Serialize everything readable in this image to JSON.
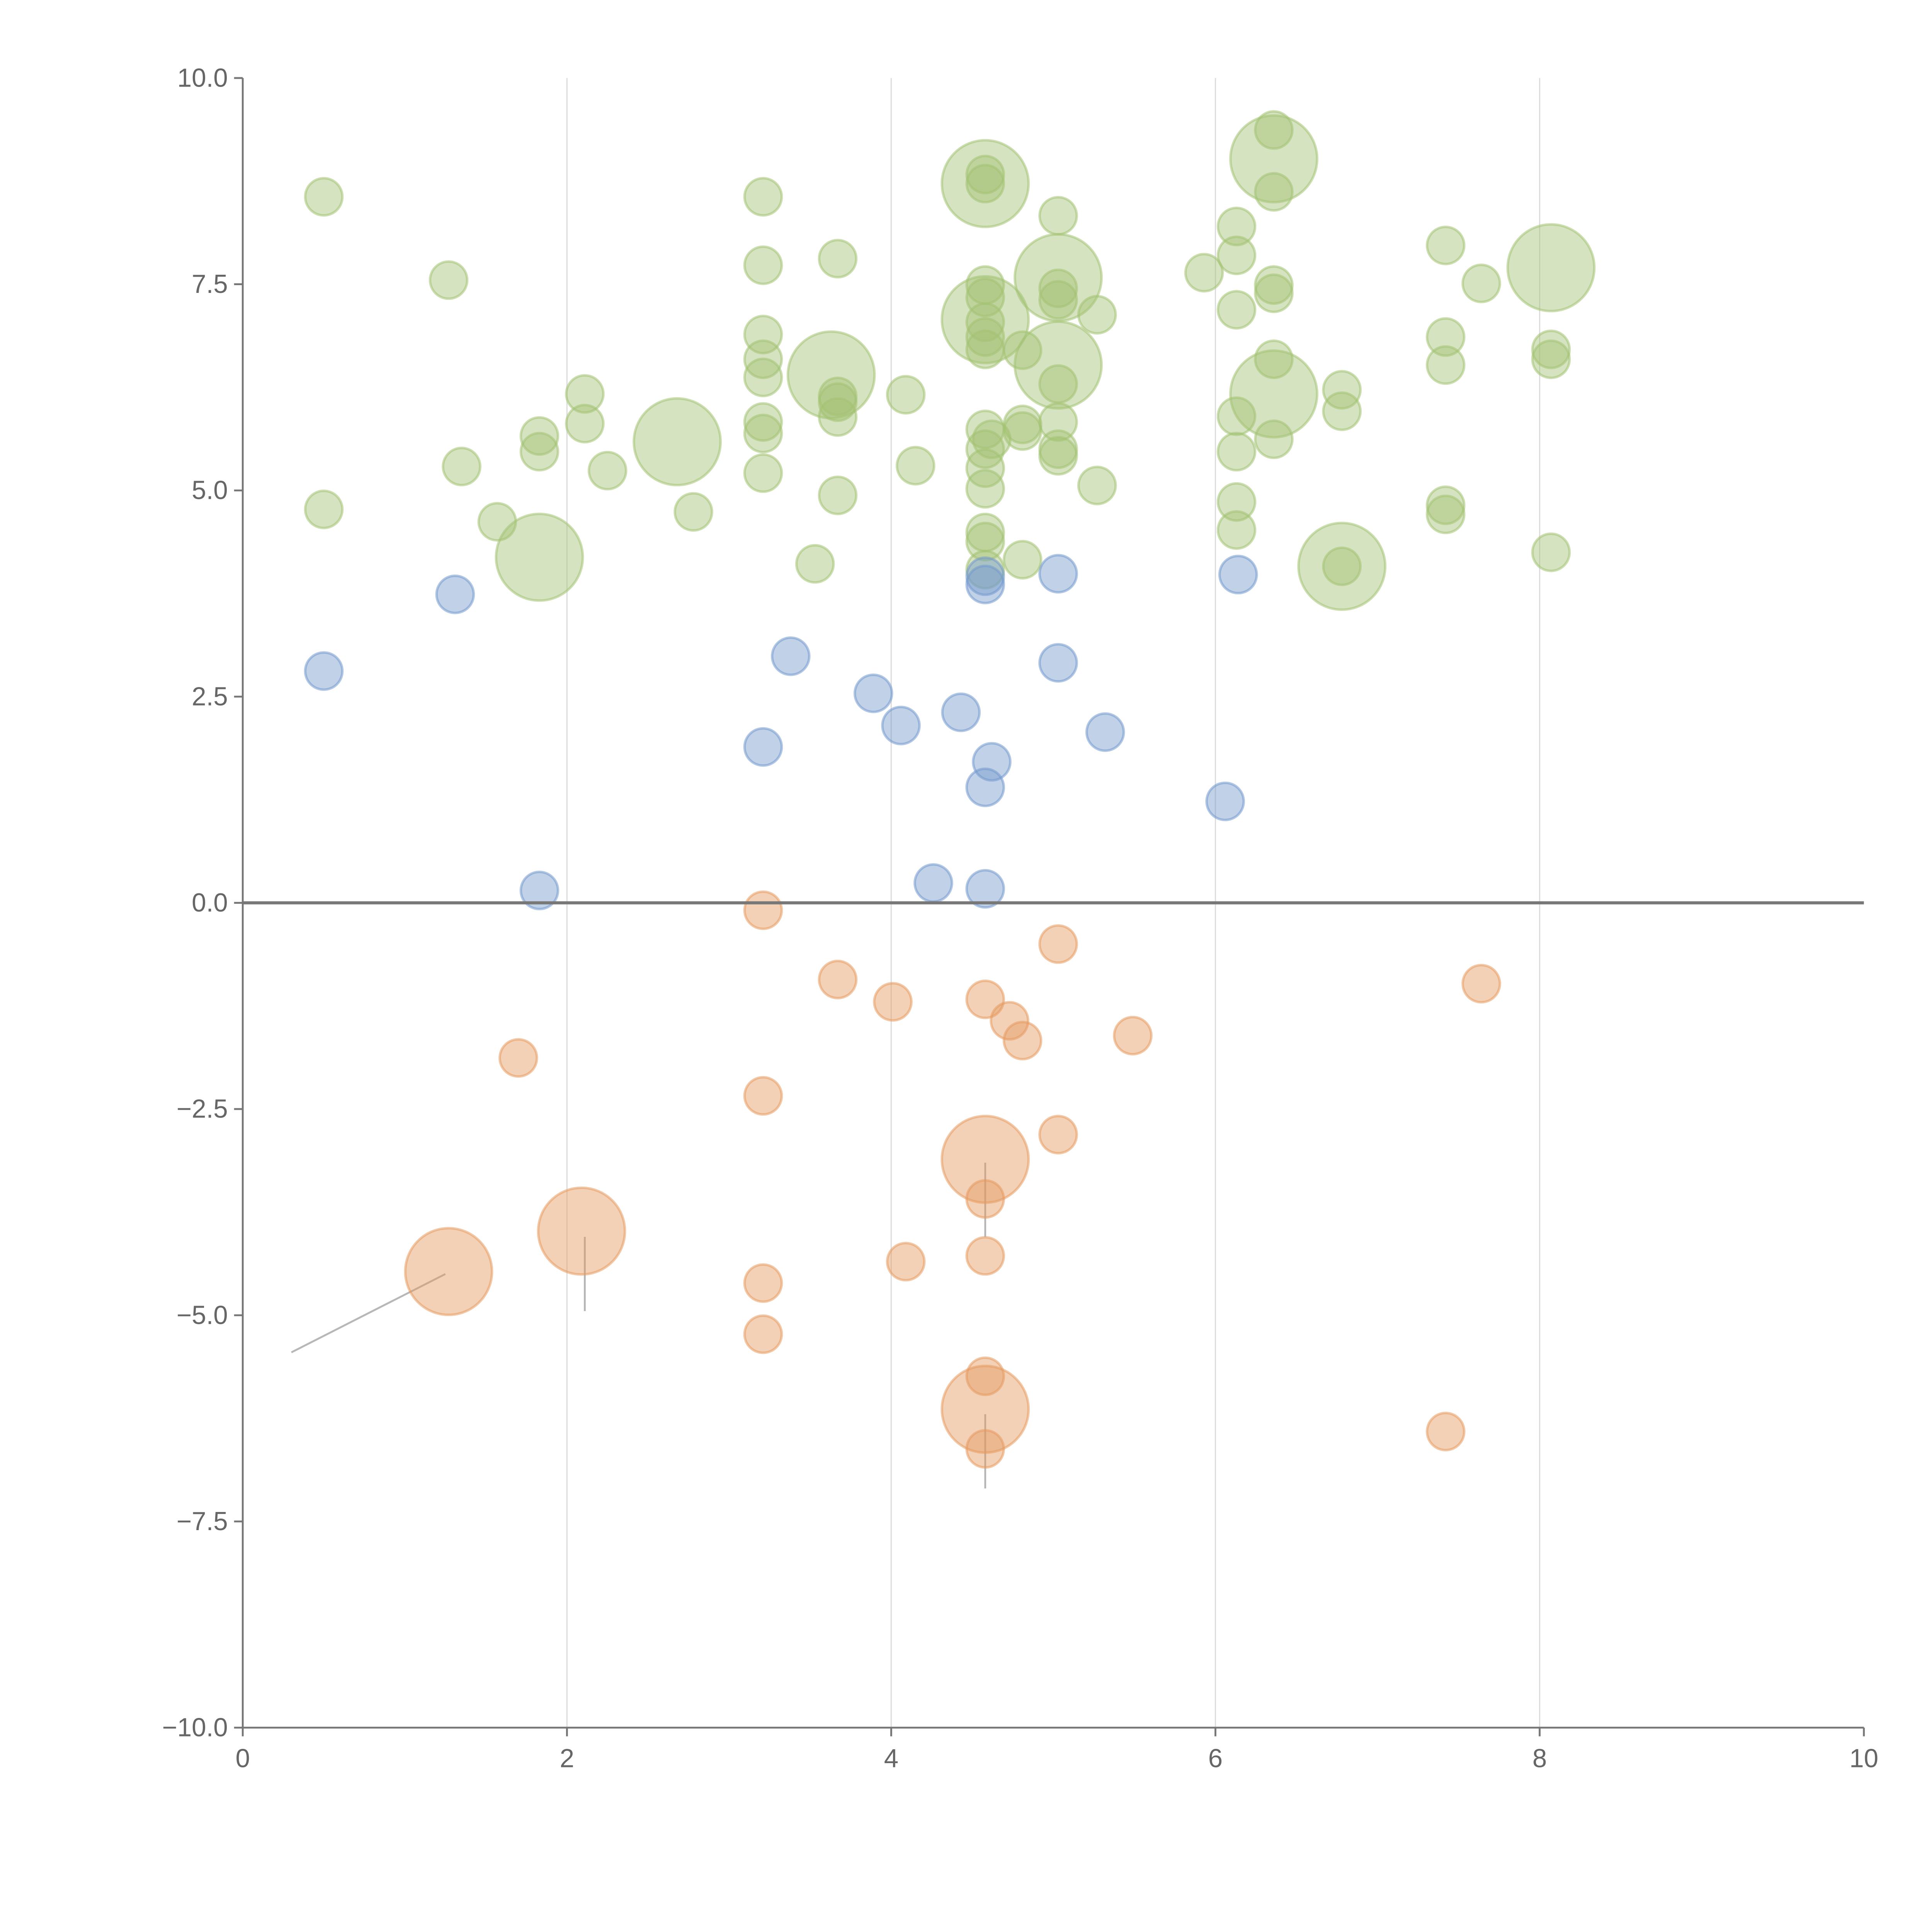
{
  "chart_data": {
    "type": "scatter",
    "title": "",
    "xlabel": "",
    "ylabel": "",
    "xlim": [
      0,
      10
    ],
    "ylim": [
      -10,
      10
    ],
    "grid": "vertical",
    "x_ticks": [
      "0",
      "2",
      "4",
      "6",
      "8",
      "10"
    ],
    "x_tick_values": [
      0,
      2,
      4,
      6,
      8,
      10
    ],
    "y_ticks": [
      "10.0",
      "7.5",
      "5.0",
      "2.5",
      "0.0",
      "−2.5",
      "−5.0",
      "−7.5",
      "−10.0"
    ],
    "y_tick_values": [
      10,
      7.5,
      5,
      2.5,
      0,
      -2.5,
      -5,
      -7.5,
      -10
    ],
    "colors": {
      "green": "#a3c273",
      "blue": "#7399cc",
      "orange": "#e59a60"
    },
    "series": [
      {
        "name": "green",
        "points": [
          [
            0.5,
            8.56,
            1
          ],
          [
            1.27,
            7.55,
            1
          ],
          [
            0.5,
            4.77,
            1
          ],
          [
            1.35,
            5.29,
            1
          ],
          [
            1.57,
            4.62,
            1
          ],
          [
            1.83,
            5.66,
            1
          ],
          [
            1.83,
            5.47,
            1
          ],
          [
            2.11,
            6.17,
            1
          ],
          [
            2.11,
            5.81,
            1
          ],
          [
            2.25,
            5.24,
            1
          ],
          [
            2.78,
            4.74,
            1
          ],
          [
            3.21,
            8.56,
            1
          ],
          [
            3.21,
            7.73,
            1
          ],
          [
            3.21,
            6.89,
            1
          ],
          [
            3.21,
            6.59,
            1
          ],
          [
            3.21,
            6.37,
            1
          ],
          [
            3.21,
            5.83,
            1
          ],
          [
            3.21,
            5.69,
            1
          ],
          [
            3.21,
            5.21,
            1
          ],
          [
            3.53,
            4.11,
            1
          ],
          [
            3.67,
            7.81,
            1
          ],
          [
            3.67,
            6.14,
            1
          ],
          [
            3.67,
            6.07,
            1
          ],
          [
            3.67,
            5.89,
            1
          ],
          [
            3.67,
            4.94,
            1
          ],
          [
            4.09,
            6.16,
            1
          ],
          [
            4.15,
            5.3,
            1
          ],
          [
            4.58,
            8.83,
            1
          ],
          [
            4.58,
            8.72,
            1
          ],
          [
            4.58,
            7.49,
            1
          ],
          [
            4.58,
            7.34,
            1
          ],
          [
            4.58,
            7.04,
            1
          ],
          [
            4.58,
            6.86,
            1
          ],
          [
            4.58,
            6.71,
            1
          ],
          [
            4.58,
            5.74,
            1
          ],
          [
            4.58,
            5.5,
            1
          ],
          [
            4.58,
            5.27,
            1
          ],
          [
            4.58,
            5.02,
            1
          ],
          [
            4.58,
            4.49,
            1
          ],
          [
            4.58,
            4.38,
            1
          ],
          [
            4.58,
            4.04,
            1
          ],
          [
            4.62,
            5.62,
            1
          ],
          [
            4.81,
            6.7,
            1
          ],
          [
            4.81,
            5.8,
            1
          ],
          [
            4.81,
            5.72,
            1
          ],
          [
            4.81,
            4.16,
            1
          ],
          [
            5.03,
            8.33,
            1
          ],
          [
            5.03,
            7.45,
            1
          ],
          [
            5.03,
            7.31,
            1
          ],
          [
            5.03,
            6.29,
            1
          ],
          [
            5.03,
            5.83,
            1
          ],
          [
            5.03,
            5.5,
            1
          ],
          [
            5.03,
            5.42,
            1
          ],
          [
            5.27,
            7.13,
            1
          ],
          [
            5.27,
            5.06,
            1
          ],
          [
            5.93,
            7.64,
            1
          ],
          [
            6.13,
            8.2,
            1
          ],
          [
            6.13,
            7.85,
            1
          ],
          [
            6.13,
            7.19,
            1
          ],
          [
            6.13,
            5.9,
            1
          ],
          [
            6.13,
            5.47,
            1
          ],
          [
            6.13,
            4.86,
            1
          ],
          [
            6.13,
            4.52,
            1
          ],
          [
            6.36,
            9.37,
            1
          ],
          [
            6.36,
            8.62,
            1
          ],
          [
            6.36,
            7.49,
            1
          ],
          [
            6.36,
            7.39,
            1
          ],
          [
            6.36,
            6.59,
            1
          ],
          [
            6.36,
            5.62,
            1
          ],
          [
            6.78,
            6.22,
            1
          ],
          [
            6.78,
            5.96,
            1
          ],
          [
            6.78,
            4.08,
            1
          ],
          [
            7.42,
            7.97,
            1
          ],
          [
            7.42,
            6.86,
            1
          ],
          [
            7.42,
            6.52,
            1
          ],
          [
            7.42,
            4.82,
            1
          ],
          [
            7.42,
            4.71,
            1
          ],
          [
            7.64,
            7.51,
            1
          ],
          [
            8.07,
            6.71,
            1
          ],
          [
            8.07,
            6.59,
            1
          ],
          [
            8.07,
            4.25,
            1
          ],
          [
            1.83,
            4.19,
            5
          ],
          [
            2.68,
            5.59,
            5
          ],
          [
            3.63,
            6.4,
            5
          ],
          [
            4.58,
            8.72,
            5
          ],
          [
            4.58,
            7.07,
            5
          ],
          [
            5.03,
            7.58,
            5
          ],
          [
            5.03,
            6.52,
            5
          ],
          [
            6.36,
            9.02,
            5
          ],
          [
            6.36,
            6.17,
            5
          ],
          [
            6.78,
            4.08,
            5
          ],
          [
            8.07,
            7.7,
            5
          ]
        ]
      },
      {
        "name": "blue",
        "points": [
          [
            0.5,
            2.81,
            1
          ],
          [
            1.31,
            3.74,
            1
          ],
          [
            1.83,
            0.15,
            1
          ],
          [
            3.21,
            1.89,
            1
          ],
          [
            3.38,
            2.99,
            1
          ],
          [
            3.89,
            2.54,
            1
          ],
          [
            4.06,
            2.15,
            1
          ],
          [
            4.26,
            0.24,
            1
          ],
          [
            4.43,
            2.31,
            1
          ],
          [
            4.58,
            3.96,
            1
          ],
          [
            4.58,
            3.86,
            1
          ],
          [
            4.58,
            1.4,
            1
          ],
          [
            4.58,
            0.17,
            1
          ],
          [
            4.62,
            1.71,
            1
          ],
          [
            5.03,
            3.99,
            1
          ],
          [
            5.03,
            2.91,
            1
          ],
          [
            5.32,
            2.07,
            1
          ],
          [
            6.06,
            1.23,
            1
          ],
          [
            6.14,
            3.98,
            1
          ]
        ]
      },
      {
        "name": "orange",
        "points": [
          [
            3.21,
            -0.09,
            1
          ],
          [
            3.67,
            -0.93,
            1
          ],
          [
            4.01,
            -1.2,
            1
          ],
          [
            4.58,
            -1.17,
            1
          ],
          [
            4.73,
            -1.43,
            1
          ],
          [
            4.81,
            -1.67,
            1
          ],
          [
            5.03,
            -0.5,
            1
          ],
          [
            5.49,
            -1.61,
            1
          ],
          [
            7.64,
            -0.98,
            1
          ],
          [
            1.7,
            -1.88,
            1
          ],
          [
            3.21,
            -2.34,
            1
          ],
          [
            5.03,
            -2.81,
            1
          ],
          [
            4.58,
            -3.59,
            1
          ],
          [
            4.09,
            -4.35,
            1
          ],
          [
            4.58,
            -4.28,
            1
          ],
          [
            3.21,
            -4.61,
            1
          ],
          [
            3.21,
            -5.23,
            1
          ],
          [
            4.58,
            -5.74,
            1
          ],
          [
            4.58,
            -6.62,
            1
          ],
          [
            7.42,
            -6.41,
            1
          ],
          [
            1.27,
            -4.47,
            5
          ],
          [
            2.09,
            -3.98,
            5
          ],
          [
            4.58,
            -3.11,
            5
          ],
          [
            4.58,
            -6.14,
            5
          ]
        ]
      }
    ],
    "leader_lines": [
      [
        0.3,
        -5.45,
        1.25,
        -4.5
      ],
      [
        2.11,
        -4.05,
        2.11,
        -4.95
      ],
      [
        4.58,
        -3.15,
        4.58,
        -4.05
      ],
      [
        4.58,
        -6.2,
        4.58,
        -7.1
      ]
    ]
  }
}
